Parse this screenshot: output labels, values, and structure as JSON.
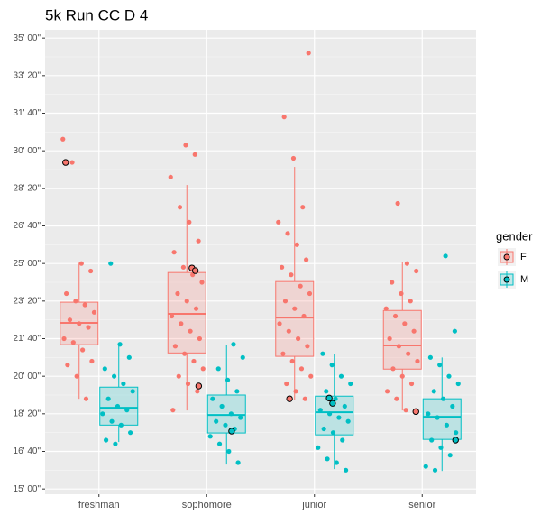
{
  "chart_data": {
    "type": "box",
    "title": "5k Run CC D 4",
    "categories": [
      "freshman",
      "sophomore",
      "junior",
      "senior"
    ],
    "ylim": [
      886,
      2122
    ],
    "yticks": [
      {
        "value": 900,
        "label": "15' 00\""
      },
      {
        "value": 1000,
        "label": "16' 40\""
      },
      {
        "value": 1100,
        "label": "18' 20\""
      },
      {
        "value": 1200,
        "label": "20' 00\""
      },
      {
        "value": 1300,
        "label": "21' 40\""
      },
      {
        "value": 1400,
        "label": "23' 20\""
      },
      {
        "value": 1500,
        "label": "25' 00\""
      },
      {
        "value": 1600,
        "label": "26' 40\""
      },
      {
        "value": 1700,
        "label": "28' 20\""
      },
      {
        "value": 1800,
        "label": "30' 00\""
      },
      {
        "value": 1900,
        "label": "31' 40\""
      },
      {
        "value": 2000,
        "label": "33' 20\""
      },
      {
        "value": 2100,
        "label": "35' 00\""
      }
    ],
    "grid": true,
    "legend_title": "gender",
    "series": [
      {
        "name": "F",
        "color": "#f8766d",
        "min": [
          1140,
          1109,
          1138,
          1109
        ],
        "q1": [
          1284,
          1262,
          1253,
          1219
        ],
        "median": [
          1342,
          1366,
          1356,
          1282
        ],
        "q3": [
          1397,
          1476,
          1452,
          1375
        ],
        "max": [
          1502,
          1709,
          1757,
          1505
        ],
        "outliers": [
          [
            1769
          ],
          [
            1488,
            1481,
            1174
          ],
          [
            1140
          ],
          [
            1106
          ]
        ],
        "points": [
          [
            1831,
            1769,
            1500,
            1480,
            1420,
            1400,
            1390,
            1370,
            1350,
            1340,
            1330,
            1300,
            1290,
            1270,
            1240,
            1230,
            1200,
            1140
          ],
          [
            1815,
            1790,
            1730,
            1650,
            1610,
            1560,
            1530,
            1490,
            1470,
            1450,
            1420,
            1400,
            1380,
            1360,
            1340,
            1320,
            1300,
            1280,
            1260,
            1240,
            1220,
            1200,
            1180,
            1160,
            1110
          ],
          [
            2060,
            1890,
            1780,
            1650,
            1610,
            1580,
            1550,
            1510,
            1490,
            1470,
            1440,
            1420,
            1400,
            1380,
            1360,
            1340,
            1320,
            1300,
            1280,
            1260,
            1240,
            1220,
            1200,
            1180,
            1160,
            1140
          ],
          [
            1660,
            1500,
            1480,
            1450,
            1420,
            1400,
            1380,
            1360,
            1340,
            1320,
            1300,
            1280,
            1260,
            1240,
            1220,
            1200,
            1180,
            1160,
            1140,
            1110
          ]
        ]
      },
      {
        "name": "M",
        "color": "#00bfc4",
        "min": [
          1025,
          965,
          953,
          948
        ],
        "q1": [
          1070,
          1049,
          1044,
          1032
        ],
        "median": [
          1116,
          1097,
          1104,
          1092
        ],
        "q3": [
          1171,
          1150,
          1147,
          1140
        ],
        "max": [
          1285,
          1284,
          1258,
          1250
        ],
        "outliers": [
          [],
          [
            1054
          ],
          [
            1142,
            1128
          ],
          [
            1030
          ]
        ],
        "points": [
          [
            1500,
            1285,
            1250,
            1220,
            1200,
            1180,
            1160,
            1140,
            1120,
            1110,
            1100,
            1080,
            1070,
            1050,
            1030,
            1020
          ],
          [
            1285,
            1250,
            1220,
            1190,
            1160,
            1140,
            1120,
            1100,
            1090,
            1080,
            1070,
            1060,
            1040,
            1020,
            1000,
            970
          ],
          [
            1260,
            1230,
            1200,
            1180,
            1160,
            1140,
            1120,
            1110,
            1100,
            1090,
            1080,
            1060,
            1050,
            1030,
            1010,
            980,
            970,
            950
          ],
          [
            1520,
            1320,
            1250,
            1230,
            1200,
            1180,
            1160,
            1140,
            1120,
            1100,
            1090,
            1070,
            1050,
            1030,
            1010,
            990,
            960,
            950
          ]
        ]
      }
    ]
  }
}
